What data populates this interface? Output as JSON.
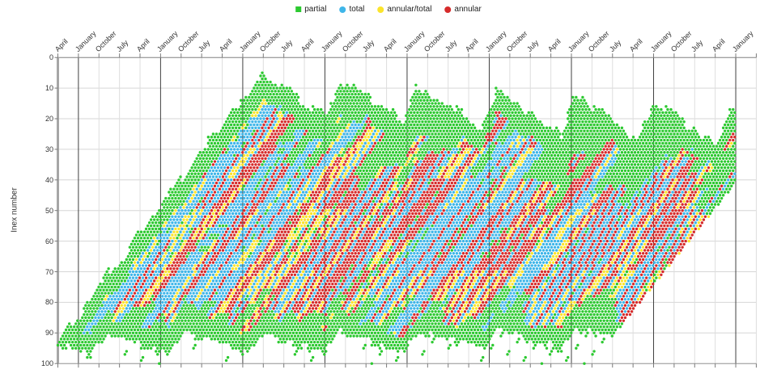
{
  "legend": {
    "items": [
      {
        "label": "partial",
        "color": "#2cc930",
        "shape": "square"
      },
      {
        "label": "total",
        "color": "#3fb6e9",
        "shape": "round"
      },
      {
        "label": "annular/total",
        "color": "#fbe42c",
        "shape": "round"
      },
      {
        "label": "annular",
        "color": "#d62b2b",
        "shape": "round"
      }
    ]
  },
  "axes": {
    "x": {
      "start_x": 71.5,
      "step": 25.38,
      "grid_tick_count": 35,
      "major_every": 4,
      "major_offset": 1,
      "tick_labels": [
        "April",
        "January",
        "October",
        "July",
        "April",
        "January",
        "October",
        "July",
        "April",
        "January",
        "October",
        "July",
        "April",
        "January",
        "October",
        "July",
        "April",
        "January",
        "October",
        "July",
        "April",
        "January",
        "October",
        "July",
        "April",
        "January",
        "October",
        "July",
        "April",
        "January",
        "October",
        "July",
        "April",
        "January"
      ]
    },
    "y": {
      "title": "Inex number",
      "min": 0,
      "max": 100,
      "tick_step": 10,
      "tick_labels": [
        "0",
        "10",
        "20",
        "30",
        "40",
        "50",
        "60",
        "70",
        "80",
        "90",
        "100"
      ],
      "inverted": true
    }
  },
  "grid_colors": {
    "h_grid": "#d6d6d6",
    "v_minor": "#dedede",
    "v_major": "#414141",
    "axis_top": "#8a8a8a",
    "axis_bottom": "#9a9a9a",
    "axis_left": "#a6a6a6",
    "tick": "#7a7a7a"
  },
  "chart_data": {
    "type": "scatter",
    "title": "",
    "xlabel": "",
    "ylabel": "Inex number",
    "ylim": [
      100,
      0
    ],
    "xtick_cycle_months": [
      "April",
      "January",
      "October",
      "July"
    ],
    "legend_position": "top-center",
    "grid": true,
    "series": [
      {
        "name": "partial",
        "color": "#2cc930"
      },
      {
        "name": "total",
        "color": "#3fb6e9"
      },
      {
        "name": "annular/total",
        "color": "#fbe42c"
      },
      {
        "name": "annular",
        "color": "#d62b2b"
      }
    ],
    "note": "Dense eclipse panorama: ~14000 dots on a checkerboard lattice (column=eclipse semester, row=inex number 0-100). Band runs diagonally with zigzag top/bottom envelopes; green 'partial' margins surround a core of diagonal red/blue series stripes with yellow hybrid segments. Dots are regenerated deterministically from the pattern parameters below.",
    "pattern": {
      "x0": 71.5,
      "col_w": 2.02,
      "y0": 71.2,
      "row_h": 3.79,
      "c_max": 414,
      "left_cut": {
        "c": 3,
        "r": 90,
        "slope": 0.705
      },
      "top_saw": {
        "first_peak_c": 124,
        "period": 48,
        "tip0": 4.2,
        "tip_step": 1.9,
        "down_slope": 0.36,
        "up_len": 8,
        "jag_block": 4,
        "jag_amp": 4
      },
      "bottom": {
        "valley_c": 116,
        "period": 48,
        "valley_r": 96.5,
        "valley_step": -0.35,
        "rise": 7,
        "rise_len": 9,
        "jag_block": 3,
        "jag_amp": 3
      },
      "right_cut_u": 476,
      "margins": {
        "top_base": 7,
        "top_var": 26,
        "bot_base": 5,
        "bot_var": 11,
        "left_u": 137,
        "left_base": 1,
        "left_var": 4,
        "right_base": 2,
        "right_var": 4,
        "right_r_lim": 52
      },
      "stripe": {
        "red_p": 0.5,
        "yellow_on_red_p": 0.3,
        "yellow_on_blue_p": 0.07,
        "yellow_seg_rows": 10,
        "green_core_p": 0.045,
        "wedge_group": 7
      },
      "streamer": {
        "mod": 13,
        "at": 4,
        "max_len": 13,
        "min_c": 40
      },
      "dot_r": 1.7,
      "seed": 43.7
    }
  }
}
